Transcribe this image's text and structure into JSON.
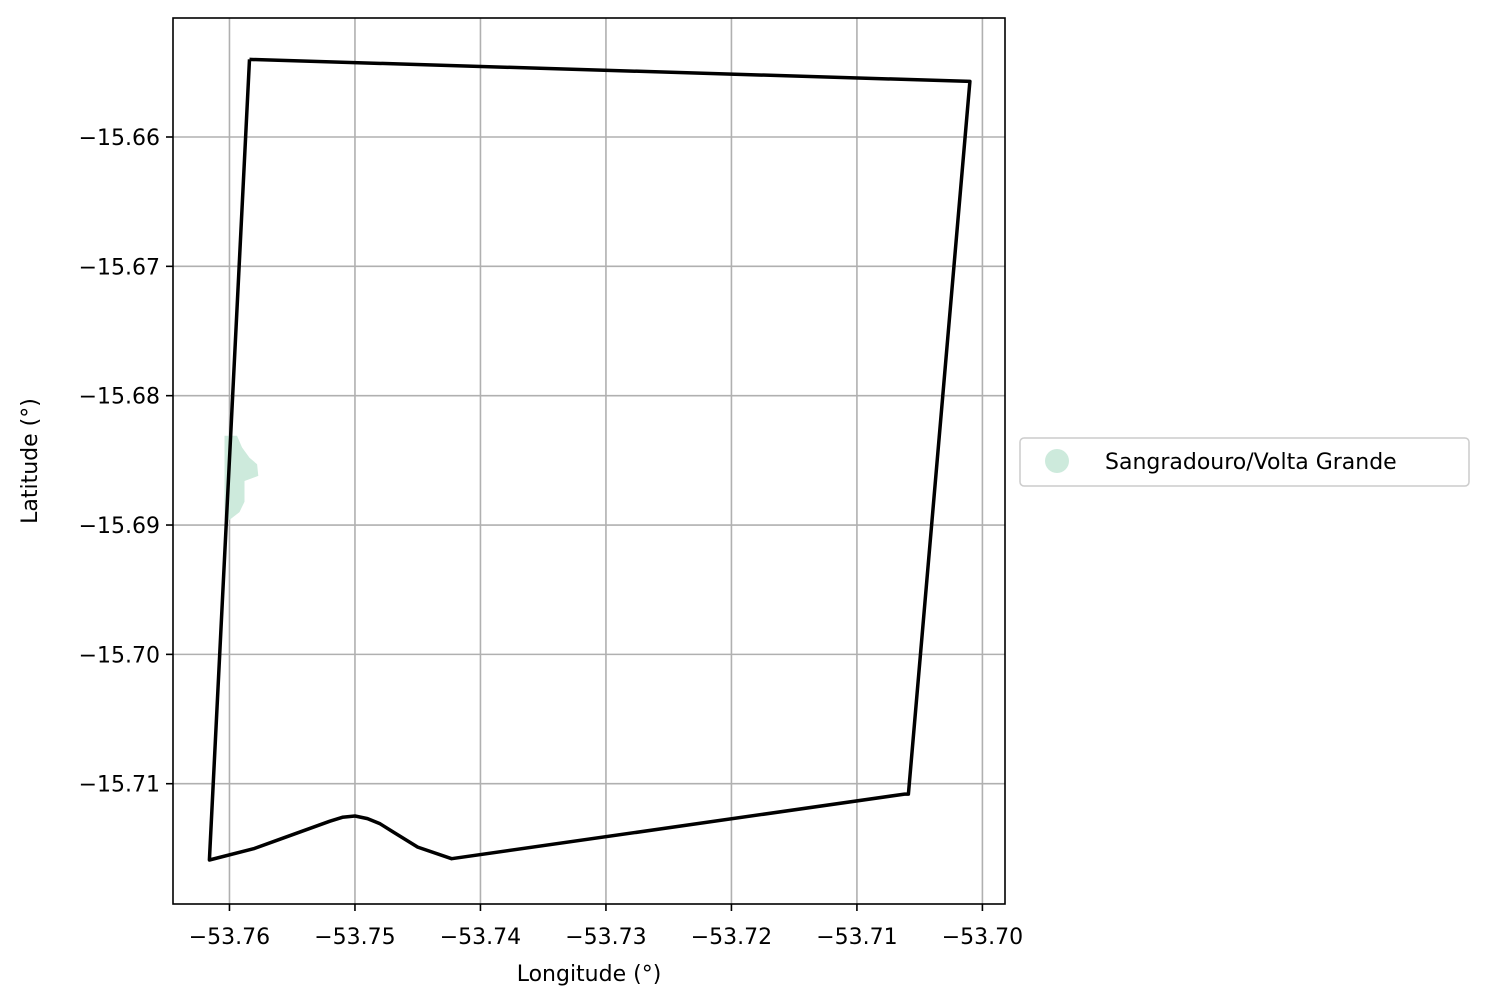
{
  "chart_data": {
    "type": "map",
    "xlabel": "Longitude (°)",
    "ylabel": "Latitude (°)",
    "xlim": [
      -53.7645,
      -53.6982
    ],
    "ylim": [
      -15.7193,
      -15.6508
    ],
    "grid": true,
    "x_ticks": [
      -53.76,
      -53.75,
      -53.74,
      -53.73,
      -53.72,
      -53.71,
      -53.7
    ],
    "x_tick_labels": [
      "−53.76",
      "−53.75",
      "−53.74",
      "−53.73",
      "−53.72",
      "−53.71",
      "−53.70"
    ],
    "y_ticks": [
      -15.66,
      -15.67,
      -15.68,
      -15.69,
      -15.7,
      -15.71
    ],
    "y_tick_labels": [
      "−15.66",
      "−15.67",
      "−15.68",
      "−15.69",
      "−15.70",
      "−15.71"
    ],
    "legend": {
      "placement": "center-right outside",
      "entries": [
        {
          "label": "Sangradouro/Volta Grande",
          "color": "#cdeadc",
          "marker": "circle"
        }
      ]
    },
    "boundary": {
      "color": "#000000",
      "points": [
        [
          -53.7584,
          -15.654
        ],
        [
          -53.701,
          -15.6557
        ],
        [
          -53.7059,
          -15.7108
        ],
        [
          -53.7062,
          -15.7108
        ],
        [
          -53.7423,
          -15.7158
        ],
        [
          -53.745,
          -15.7149
        ],
        [
          -53.747,
          -15.7137
        ],
        [
          -53.748,
          -15.7131
        ],
        [
          -53.749,
          -15.7127
        ],
        [
          -53.75,
          -15.7125
        ],
        [
          -53.751,
          -15.7126
        ],
        [
          -53.752,
          -15.7129
        ],
        [
          -53.756,
          -15.7143
        ],
        [
          -53.758,
          -15.715
        ],
        [
          -53.7616,
          -15.7159
        ],
        [
          -53.7584,
          -15.654
        ]
      ]
    },
    "area": {
      "name": "Sangradouro/Volta Grande",
      "color": "#cdeadc",
      "points": [
        [
          -53.76,
          -15.6831
        ],
        [
          -53.7594,
          -15.6831
        ],
        [
          -53.759,
          -15.684
        ],
        [
          -53.7584,
          -15.6848
        ],
        [
          -53.7578,
          -15.6853
        ],
        [
          -53.7577,
          -15.6862
        ],
        [
          -53.7588,
          -15.6866
        ],
        [
          -53.7588,
          -15.6882
        ],
        [
          -53.7592,
          -15.689
        ],
        [
          -53.76,
          -15.6896
        ],
        [
          -53.7604,
          -15.6896
        ],
        [
          -53.7604,
          -15.6831
        ],
        [
          -53.76,
          -15.6831
        ]
      ]
    }
  }
}
